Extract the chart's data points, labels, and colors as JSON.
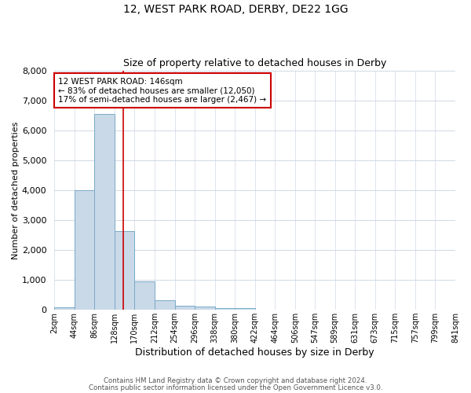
{
  "title1": "12, WEST PARK ROAD, DERBY, DE22 1GG",
  "title2": "Size of property relative to detached houses in Derby",
  "xlabel": "Distribution of detached houses by size in Derby",
  "ylabel": "Number of detached properties",
  "footnote1": "Contains HM Land Registry data © Crown copyright and database right 2024.",
  "footnote2": "Contains public sector information licensed under the Open Government Licence v3.0.",
  "annotation_line1": "12 WEST PARK ROAD: 146sqm",
  "annotation_line2": "← 83% of detached houses are smaller (12,050)",
  "annotation_line3": "17% of semi-detached houses are larger (2,467) →",
  "bar_color": "#c9d9e8",
  "bar_edge_color": "#7aaac8",
  "marker_color": "#cc0000",
  "bin_labels": [
    "2sqm",
    "44sqm",
    "86sqm",
    "128sqm",
    "170sqm",
    "212sqm",
    "254sqm",
    "296sqm",
    "338sqm",
    "380sqm",
    "422sqm",
    "464sqm",
    "506sqm",
    "547sqm",
    "589sqm",
    "631sqm",
    "673sqm",
    "715sqm",
    "757sqm",
    "799sqm",
    "841sqm"
  ],
  "bin_edges": [
    2,
    44,
    86,
    128,
    170,
    212,
    254,
    296,
    338,
    380,
    422,
    464,
    506,
    547,
    589,
    631,
    673,
    715,
    757,
    799,
    841
  ],
  "bar_heights": [
    80,
    4000,
    6550,
    2620,
    950,
    310,
    130,
    100,
    70,
    50,
    0,
    0,
    0,
    0,
    0,
    0,
    0,
    0,
    0,
    0
  ],
  "property_size": 146,
  "ylim": [
    0,
    8000
  ],
  "yticks": [
    0,
    1000,
    2000,
    3000,
    4000,
    5000,
    6000,
    7000,
    8000
  ],
  "grid_color": "#d0d8e4",
  "background_color": "#ffffff",
  "annotation_box_color": "#ffffff",
  "annotation_box_edge": "#cc0000"
}
